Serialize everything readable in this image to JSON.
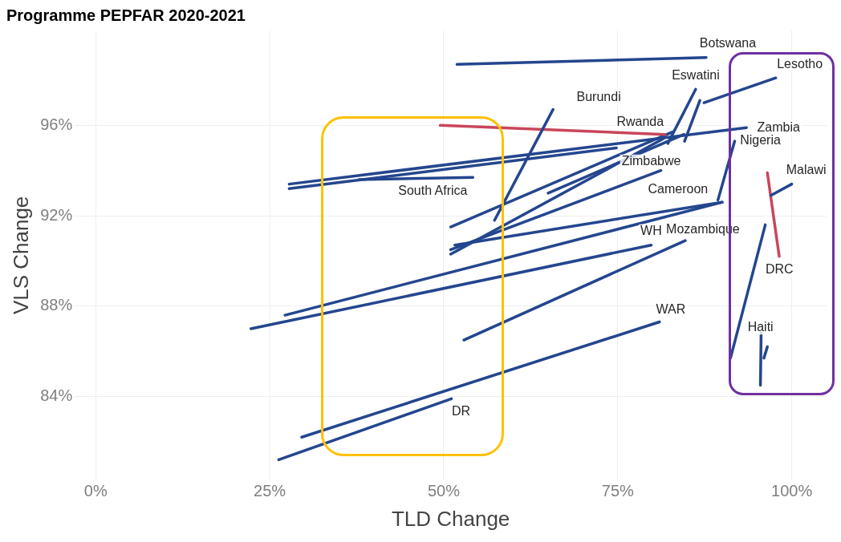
{
  "chart_data": {
    "type": "line",
    "title": "Programme PEPFAR 2020-2021",
    "xlabel": "TLD Change",
    "ylabel": "VLS Change",
    "xlim": [
      -3,
      105
    ],
    "ylim": [
      80.3,
      100.2
    ],
    "xticks": [
      {
        "value": 0,
        "label": "0%"
      },
      {
        "value": 25,
        "label": "25%"
      },
      {
        "value": 50,
        "label": "50%"
      },
      {
        "value": 75,
        "label": "75%"
      },
      {
        "value": 100,
        "label": "100%"
      }
    ],
    "yticks": [
      {
        "value": 84,
        "label": "84%"
      },
      {
        "value": 88,
        "label": "88%"
      },
      {
        "value": 92,
        "label": "92%"
      },
      {
        "value": 96,
        "label": "96%"
      }
    ],
    "grid": true,
    "marker": "none",
    "line_style": "solid",
    "legend": false,
    "series": [
      {
        "name": "Botswana",
        "color": "#24468f",
        "x": [
          51.9,
          87.7
        ],
        "values": [
          98.7,
          99.0
        ]
      },
      {
        "name": "Lesotho",
        "color": "#24468f",
        "x": [
          87.4,
          97.7
        ],
        "values": [
          97.0,
          98.1
        ]
      },
      {
        "name": "Eswatini",
        "color": "#24468f",
        "x": [
          82.2,
          86.2
        ],
        "values": [
          95.2,
          97.6
        ]
      },
      {
        "color": "#24468f",
        "x": [
          84.6,
          86.8
        ],
        "values": [
          95.3,
          97.1
        ]
      },
      {
        "name": "Burundi",
        "color": "#24468f",
        "x": [
          57.3,
          65.7
        ],
        "values": [
          91.8,
          96.7
        ]
      },
      {
        "name": "Rwanda",
        "color": "#c9465a",
        "x": [
          49.5,
          81.8
        ],
        "values": [
          96.0,
          95.6
        ]
      },
      {
        "name": "Zambia",
        "color": "#24468f",
        "x": [
          27.8,
          93.5
        ],
        "values": [
          93.4,
          95.9
        ]
      },
      {
        "color": "#24468f",
        "x": [
          27.8,
          74.8
        ],
        "values": [
          93.2,
          95.0
        ]
      },
      {
        "color": "#24468f",
        "x": [
          51.0,
          82.8
        ],
        "values": [
          91.5,
          95.7
        ]
      },
      {
        "color": "#24468f",
        "x": [
          51.0,
          81.5
        ],
        "values": [
          90.3,
          95.4
        ]
      },
      {
        "color": "#24468f",
        "x": [
          65.0,
          84.5
        ],
        "values": [
          93.0,
          95.6
        ]
      },
      {
        "name": "South Africa",
        "color": "#24468f",
        "x": [
          37.8,
          54.2
        ],
        "values": [
          93.6,
          93.7
        ]
      },
      {
        "name": "Nigeria",
        "color": "#24468f",
        "x": [
          89.4,
          91.8
        ],
        "values": [
          92.7,
          95.3
        ]
      },
      {
        "name": "Malawi",
        "color": "#24468f",
        "x": [
          97.0,
          100.0
        ],
        "values": [
          92.9,
          93.4
        ]
      },
      {
        "name": "DRC",
        "color": "#c9465a",
        "x": [
          98.2,
          96.5
        ],
        "values": [
          90.2,
          93.9
        ]
      },
      {
        "name": "Zimbabwe",
        "color": "#24468f",
        "x": [
          51.0,
          81.2
        ],
        "values": [
          90.5,
          94.0
        ]
      },
      {
        "name": "Cameroon",
        "color": "#24468f",
        "x": [
          51.6,
          90.0
        ],
        "values": [
          90.7,
          92.6
        ]
      },
      {
        "color": "#24468f",
        "x": [
          27.2,
          90.0
        ],
        "values": [
          87.6,
          92.6
        ]
      },
      {
        "name": "WH",
        "color": "#24468f",
        "x": [
          22.3,
          79.8
        ],
        "values": [
          87.0,
          90.7
        ]
      },
      {
        "name": "Mozambique",
        "color": "#24468f",
        "x": [
          52.9,
          84.7
        ],
        "values": [
          86.5,
          90.9
        ]
      },
      {
        "name": "WAR",
        "color": "#24468f",
        "x": [
          29.6,
          81.0
        ],
        "values": [
          82.2,
          87.3
        ]
      },
      {
        "name": "DR",
        "color": "#24468f",
        "x": [
          26.3,
          51.1
        ],
        "values": [
          81.2,
          83.9
        ]
      },
      {
        "name": "Haiti",
        "color": "#24468f",
        "x": [
          91.2,
          96.2
        ],
        "values": [
          85.7,
          91.6
        ]
      },
      {
        "color": "#24468f",
        "x": [
          95.5,
          95.6
        ],
        "values": [
          84.5,
          86.8
        ]
      },
      {
        "color": "#24468f",
        "x": [
          96.0,
          96.5
        ],
        "values": [
          85.7,
          86.2
        ]
      }
    ]
  }
}
